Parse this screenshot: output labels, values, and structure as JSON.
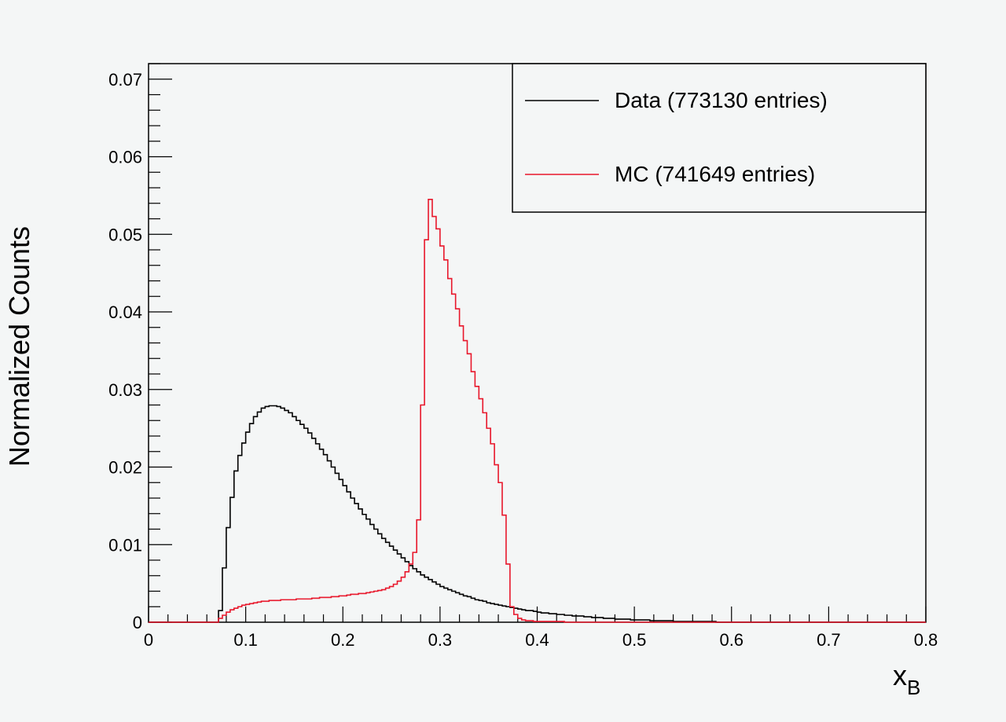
{
  "chart_data": {
    "type": "histogram",
    "title": "",
    "xlabel": "x",
    "xlabel_subscript": "B",
    "ylabel": "Normalized Counts",
    "xlim": [
      0,
      0.8
    ],
    "ylim": [
      0,
      0.072
    ],
    "x_ticks": [
      "0",
      "0.1",
      "0.2",
      "0.3",
      "0.4",
      "0.5",
      "0.6",
      "0.7",
      "0.8"
    ],
    "y_ticks": [
      "0",
      "0.01",
      "0.02",
      "0.03",
      "0.04",
      "0.05",
      "0.06",
      "0.07"
    ],
    "grid": false,
    "legend_position": "top-right",
    "series": [
      {
        "name": "Data (773130 entries)",
        "color": "#000000",
        "points": [
          [
            0.068,
            0.0
          ],
          [
            0.072,
            0.0015
          ],
          [
            0.076,
            0.007
          ],
          [
            0.08,
            0.0122
          ],
          [
            0.084,
            0.0161
          ],
          [
            0.088,
            0.0195
          ],
          [
            0.092,
            0.0215
          ],
          [
            0.096,
            0.0231
          ],
          [
            0.1,
            0.0245
          ],
          [
            0.104,
            0.0256
          ],
          [
            0.108,
            0.0265
          ],
          [
            0.112,
            0.0271
          ],
          [
            0.116,
            0.0276
          ],
          [
            0.12,
            0.0278
          ],
          [
            0.124,
            0.0279
          ],
          [
            0.128,
            0.0279
          ],
          [
            0.132,
            0.0278
          ],
          [
            0.136,
            0.0276
          ],
          [
            0.14,
            0.0273
          ],
          [
            0.144,
            0.027
          ],
          [
            0.148,
            0.0265
          ],
          [
            0.152,
            0.026
          ],
          [
            0.156,
            0.0255
          ],
          [
            0.16,
            0.025
          ],
          [
            0.164,
            0.0244
          ],
          [
            0.168,
            0.0237
          ],
          [
            0.172,
            0.023
          ],
          [
            0.176,
            0.0223
          ],
          [
            0.18,
            0.0216
          ],
          [
            0.184,
            0.0208
          ],
          [
            0.188,
            0.02
          ],
          [
            0.192,
            0.0192
          ],
          [
            0.196,
            0.0184
          ],
          [
            0.2,
            0.0176
          ],
          [
            0.204,
            0.0168
          ],
          [
            0.208,
            0.016
          ],
          [
            0.212,
            0.0153
          ],
          [
            0.216,
            0.0146
          ],
          [
            0.22,
            0.0139
          ],
          [
            0.224,
            0.0133
          ],
          [
            0.228,
            0.0126
          ],
          [
            0.232,
            0.012
          ],
          [
            0.236,
            0.0114
          ],
          [
            0.24,
            0.0108
          ],
          [
            0.244,
            0.0103
          ],
          [
            0.248,
            0.0098
          ],
          [
            0.252,
            0.0093
          ],
          [
            0.256,
            0.0088
          ],
          [
            0.26,
            0.0083
          ],
          [
            0.264,
            0.0078
          ],
          [
            0.268,
            0.0073
          ],
          [
            0.272,
            0.0069
          ],
          [
            0.276,
            0.0065
          ],
          [
            0.28,
            0.0061
          ],
          [
            0.284,
            0.0058
          ],
          [
            0.288,
            0.0055
          ],
          [
            0.292,
            0.0052
          ],
          [
            0.296,
            0.0049
          ],
          [
            0.3,
            0.0046
          ],
          [
            0.304,
            0.0044
          ],
          [
            0.308,
            0.0042
          ],
          [
            0.312,
            0.004
          ],
          [
            0.316,
            0.0038
          ],
          [
            0.32,
            0.0036
          ],
          [
            0.324,
            0.0034
          ],
          [
            0.328,
            0.0033
          ],
          [
            0.332,
            0.0031
          ],
          [
            0.336,
            0.0029
          ],
          [
            0.34,
            0.0028
          ],
          [
            0.344,
            0.0027
          ],
          [
            0.348,
            0.0025
          ],
          [
            0.352,
            0.0024
          ],
          [
            0.356,
            0.0023
          ],
          [
            0.36,
            0.0022
          ],
          [
            0.364,
            0.0021
          ],
          [
            0.368,
            0.002
          ],
          [
            0.372,
            0.0019
          ],
          [
            0.376,
            0.0018
          ],
          [
            0.38,
            0.0017
          ],
          [
            0.384,
            0.0016
          ],
          [
            0.388,
            0.0015
          ],
          [
            0.392,
            0.0015
          ],
          [
            0.396,
            0.0014
          ],
          [
            0.4,
            0.0013
          ],
          [
            0.404,
            0.0012
          ],
          [
            0.408,
            0.0012
          ],
          [
            0.412,
            0.0011
          ],
          [
            0.416,
            0.0011
          ],
          [
            0.42,
            0.001
          ],
          [
            0.424,
            0.001
          ],
          [
            0.428,
            0.0009
          ],
          [
            0.432,
            0.0009
          ],
          [
            0.436,
            0.0008
          ],
          [
            0.44,
            0.0008
          ],
          [
            0.444,
            0.0008
          ],
          [
            0.448,
            0.0007
          ],
          [
            0.452,
            0.0007
          ],
          [
            0.456,
            0.0006
          ],
          [
            0.46,
            0.0006
          ],
          [
            0.464,
            0.0006
          ],
          [
            0.468,
            0.0005
          ],
          [
            0.472,
            0.0005
          ],
          [
            0.476,
            0.0005
          ],
          [
            0.48,
            0.0004
          ],
          [
            0.484,
            0.0004
          ],
          [
            0.488,
            0.0004
          ],
          [
            0.492,
            0.0004
          ],
          [
            0.496,
            0.0003
          ],
          [
            0.5,
            0.0003
          ],
          [
            0.504,
            0.0003
          ],
          [
            0.508,
            0.0003
          ],
          [
            0.512,
            0.0003
          ],
          [
            0.516,
            0.0002
          ],
          [
            0.52,
            0.0002
          ],
          [
            0.524,
            0.0002
          ],
          [
            0.528,
            0.0002
          ],
          [
            0.532,
            0.0002
          ],
          [
            0.536,
            0.0002
          ],
          [
            0.54,
            0.0001
          ],
          [
            0.544,
            0.0001
          ],
          [
            0.548,
            0.0001
          ],
          [
            0.552,
            0.0001
          ],
          [
            0.556,
            0.0001
          ],
          [
            0.56,
            0.0001
          ],
          [
            0.564,
            0.0001
          ],
          [
            0.568,
            0.0001
          ],
          [
            0.572,
            0.0001
          ],
          [
            0.576,
            0.0001
          ],
          [
            0.58,
            0.0001
          ],
          [
            0.584,
            0.0
          ]
        ]
      },
      {
        "name": "MC (741649 entries)",
        "color": "#e8172b",
        "points": [
          [
            0.068,
            0.0
          ],
          [
            0.072,
            0.0005
          ],
          [
            0.076,
            0.0009
          ],
          [
            0.08,
            0.0013
          ],
          [
            0.084,
            0.0016
          ],
          [
            0.088,
            0.0018
          ],
          [
            0.092,
            0.002
          ],
          [
            0.096,
            0.0022
          ],
          [
            0.1,
            0.0023
          ],
          [
            0.104,
            0.0024
          ],
          [
            0.108,
            0.0025
          ],
          [
            0.112,
            0.0026
          ],
          [
            0.116,
            0.0027
          ],
          [
            0.12,
            0.0027
          ],
          [
            0.124,
            0.0028
          ],
          [
            0.128,
            0.0028
          ],
          [
            0.132,
            0.0028
          ],
          [
            0.136,
            0.0029
          ],
          [
            0.14,
            0.0029
          ],
          [
            0.144,
            0.0029
          ],
          [
            0.148,
            0.0029
          ],
          [
            0.152,
            0.003
          ],
          [
            0.156,
            0.003
          ],
          [
            0.16,
            0.003
          ],
          [
            0.164,
            0.003
          ],
          [
            0.168,
            0.0031
          ],
          [
            0.172,
            0.0031
          ],
          [
            0.176,
            0.0032
          ],
          [
            0.18,
            0.0032
          ],
          [
            0.184,
            0.0032
          ],
          [
            0.188,
            0.0033
          ],
          [
            0.192,
            0.0033
          ],
          [
            0.196,
            0.0034
          ],
          [
            0.2,
            0.0034
          ],
          [
            0.204,
            0.0035
          ],
          [
            0.208,
            0.0036
          ],
          [
            0.212,
            0.0036
          ],
          [
            0.216,
            0.0037
          ],
          [
            0.22,
            0.0037
          ],
          [
            0.224,
            0.0038
          ],
          [
            0.228,
            0.0039
          ],
          [
            0.232,
            0.004
          ],
          [
            0.236,
            0.0041
          ],
          [
            0.24,
            0.0042
          ],
          [
            0.244,
            0.0044
          ],
          [
            0.248,
            0.0046
          ],
          [
            0.252,
            0.0049
          ],
          [
            0.256,
            0.0053
          ],
          [
            0.26,
            0.0058
          ],
          [
            0.264,
            0.0065
          ],
          [
            0.268,
            0.0075
          ],
          [
            0.272,
            0.009
          ],
          [
            0.276,
            0.0132
          ],
          [
            0.28,
            0.028
          ],
          [
            0.284,
            0.0493
          ],
          [
            0.288,
            0.0545
          ],
          [
            0.292,
            0.0523
          ],
          [
            0.296,
            0.0507
          ],
          [
            0.3,
            0.0485
          ],
          [
            0.304,
            0.0467
          ],
          [
            0.308,
            0.0443
          ],
          [
            0.312,
            0.0423
          ],
          [
            0.316,
            0.0404
          ],
          [
            0.32,
            0.0382
          ],
          [
            0.324,
            0.0363
          ],
          [
            0.328,
            0.0346
          ],
          [
            0.332,
            0.0323
          ],
          [
            0.336,
            0.0304
          ],
          [
            0.34,
            0.0288
          ],
          [
            0.344,
            0.027
          ],
          [
            0.348,
            0.025
          ],
          [
            0.352,
            0.023
          ],
          [
            0.356,
            0.0203
          ],
          [
            0.36,
            0.018
          ],
          [
            0.364,
            0.0138
          ],
          [
            0.368,
            0.0075
          ],
          [
            0.372,
            0.002
          ],
          [
            0.376,
            0.001
          ],
          [
            0.38,
            0.0005
          ],
          [
            0.384,
            0.0003
          ],
          [
            0.388,
            0.0002
          ],
          [
            0.392,
            0.0002
          ],
          [
            0.396,
            0.0001
          ],
          [
            0.4,
            0.0001
          ],
          [
            0.404,
            0.0001
          ],
          [
            0.408,
            0.0001
          ],
          [
            0.412,
            0.0001
          ],
          [
            0.416,
            0.0001
          ],
          [
            0.42,
            0.0001
          ],
          [
            0.424,
            0.0001
          ],
          [
            0.428,
            0.0
          ]
        ]
      }
    ]
  },
  "colors": {
    "background": "#f4f6f6",
    "data": "#000000",
    "mc": "#e8172b"
  }
}
